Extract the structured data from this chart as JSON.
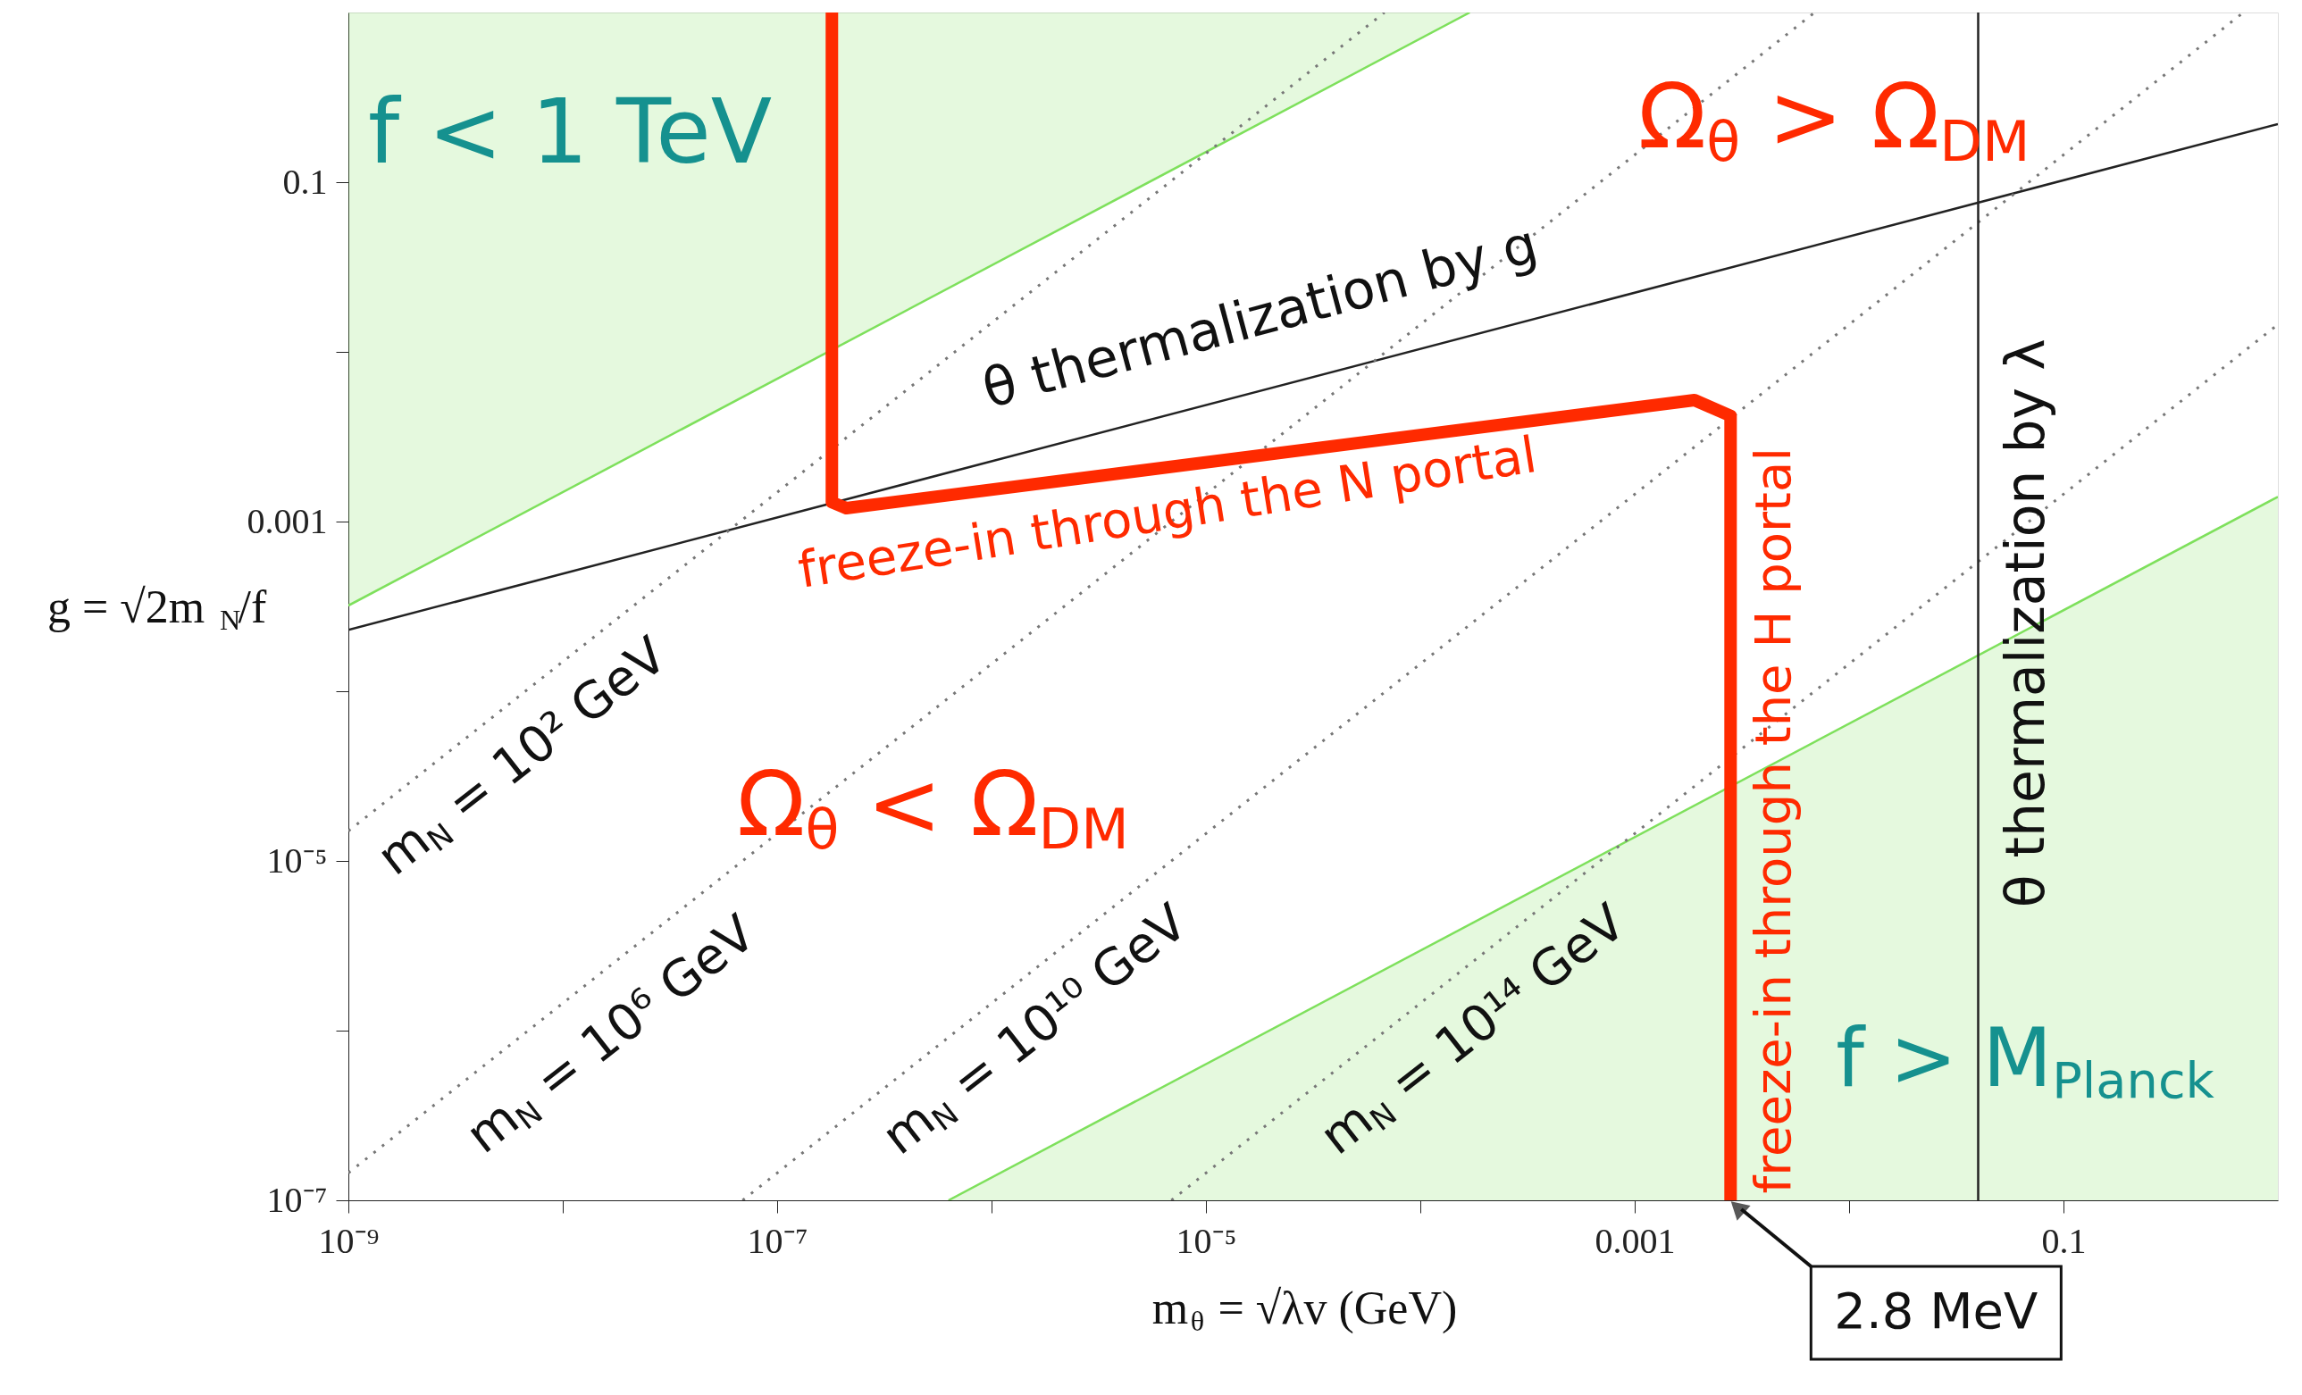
{
  "chart_data": {
    "type": "line",
    "xlabel": "m$_{θ}$ = √λv  (GeV)",
    "ylabel": "g = √2m$_{N}$/f",
    "log": "xy",
    "grid": false,
    "xlim": [
      1e-09,
      1
    ],
    "ylim": [
      1e-07,
      1
    ],
    "xticks": [
      {
        "value": 1e-09,
        "label": "10⁻⁹"
      },
      {
        "value": 1e-08,
        "label": null
      },
      {
        "value": 1e-07,
        "label": "10⁻⁷"
      },
      {
        "value": 1e-06,
        "label": null
      },
      {
        "value": 1e-05,
        "label": "10⁻⁵"
      },
      {
        "value": 0.0001,
        "label": null
      },
      {
        "value": 0.001,
        "label": "0.001"
      },
      {
        "value": 0.01,
        "label": null
      },
      {
        "value": 0.1,
        "label": "0.1"
      }
    ],
    "yticks": [
      {
        "value": 1e-07,
        "label": "10⁻⁷"
      },
      {
        "value": 1e-06,
        "label": null
      },
      {
        "value": 1e-05,
        "label": "10⁻⁵"
      },
      {
        "value": 0.0001,
        "label": null
      },
      {
        "value": 0.001,
        "label": "0.001"
      },
      {
        "value": 0.01,
        "label": null
      },
      {
        "value": 0.1,
        "label": "0.1"
      }
    ],
    "series": [
      {
        "color": "#7ee05c",
        "x": [
          1e-09,
          0.00017
        ],
        "values": [
          0.00032,
          1
        ],
        "lower": [
          0.00032,
          1
        ],
        "upper": [
          1,
          1
        ]
      },
      {
        "color": "#7ee05c",
        "x": [
          6.3e-07,
          1
        ],
        "values": [
          1e-07,
          0.0014
        ],
        "lower": [
          1e-07,
          1e-07
        ],
        "upper": [
          1e-07,
          0.0014
        ]
      },
      {
        "color": "#222222",
        "x": [
          1e-09,
          1
        ],
        "values": [
          0.00023,
          0.22
        ]
      },
      {
        "color": "#777777",
        "line_style": "dotted",
        "x": [
          1e-09,
          6.8e-05
        ],
        "values": [
          1.5e-05,
          1
        ]
      },
      {
        "color": "#777777",
        "line_style": "dotted",
        "x": [
          1e-09,
          0.0069
        ],
        "values": [
          1.45e-07,
          1
        ]
      },
      {
        "color": "#777777",
        "line_style": "dotted",
        "x": [
          6.9e-08,
          0.69
        ],
        "values": [
          1e-07,
          1
        ]
      },
      {
        "color": "#777777",
        "line_style": "dotted",
        "x": [
          6.9e-06,
          1
        ],
        "values": [
          1e-07,
          0.0145
        ]
      },
      {
        "color": "#ff2a00",
        "x": [
          1.8e-07,
          1.8e-07,
          2.1e-07,
          0.0019,
          0.0028,
          0.0028
        ],
        "values": [
          1,
          0.0013,
          0.0012,
          0.0052,
          0.0042,
          1e-07
        ]
      }
    ],
    "ref_lines": [
      {
        "axis": "x",
        "value": 0.04,
        "color": "#222222"
      }
    ],
    "annotations": [
      "f < 1 TeV",
      "Ω$_{θ}$ > Ω$_{DM}$",
      "Ω$_{θ}$ < Ω$_{DM}$",
      "θ thermalization by g",
      "freeze-in through the N portal",
      "freeze-in through the H portal",
      "θ thermalization by λ",
      "m$_{N}$ = 10² GeV",
      "m$_{N}$ = 10⁶ GeV",
      "m$_{N}$ = 10¹⁰ GeV",
      "m$_{N}$ = 10¹⁴ GeV",
      "f > M$_{Planck}$",
      {
        "text": "2.8 MeV",
        "x": 0.0028,
        "y": 1e-07
      }
    ]
  }
}
